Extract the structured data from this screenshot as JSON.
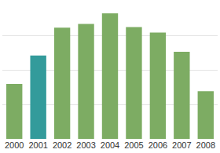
{
  "chart_data": {
    "type": "bar",
    "categories": [
      "2000",
      "2001",
      "2002",
      "2003",
      "2004",
      "2005",
      "2006",
      "2007",
      "2008"
    ],
    "values": [
      1.6,
      2.43,
      3.24,
      3.35,
      3.66,
      3.26,
      3.1,
      2.54,
      1.39
    ],
    "colors": [
      "#7dac63",
      "#339b9b",
      "#7dac63",
      "#7dac63",
      "#7dac63",
      "#7dac63",
      "#7dac63",
      "#7dac63",
      "#7dac63"
    ],
    "ylim": [
      0,
      4
    ],
    "yticks": [
      0,
      1,
      2,
      3,
      4
    ],
    "grid": true,
    "tick_labels": "x"
  }
}
